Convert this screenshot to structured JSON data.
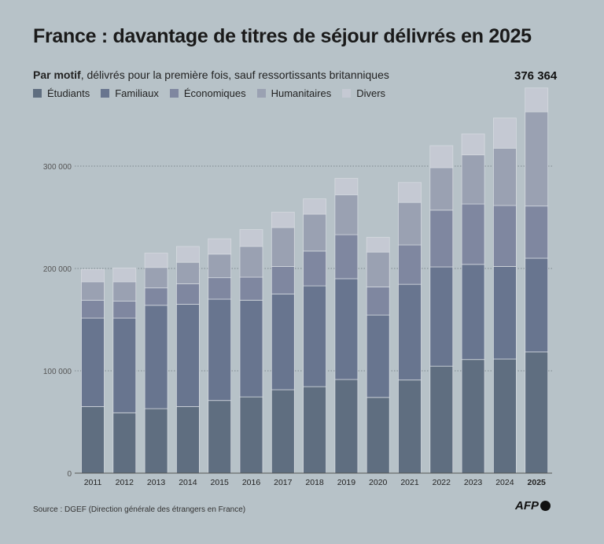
{
  "chart_data": {
    "type": "bar",
    "stacked": true,
    "title": "France : davantage de titres de séjour délivrés en 2025",
    "subtitle_bold": "Par motif",
    "subtitle_rest": ", délivrés pour la première fois, sauf ressortissants britanniques",
    "categories": [
      "2011",
      "2012",
      "2013",
      "2014",
      "2015",
      "2016",
      "2017",
      "2018",
      "2019",
      "2020",
      "2021",
      "2022",
      "2023",
      "2024",
      "2025"
    ],
    "series": [
      {
        "name": "Étudiants",
        "color": "#5f6e80",
        "values": [
          65000,
          59000,
          63000,
          65000,
          71000,
          74500,
          81500,
          84500,
          91500,
          74000,
          91000,
          104500,
          111000,
          111500,
          118500
        ]
      },
      {
        "name": "Familiaux",
        "color": "#68758f",
        "values": [
          86500,
          92500,
          101000,
          100000,
          99000,
          94500,
          93500,
          98500,
          98500,
          80500,
          93500,
          97000,
          93000,
          90500,
          91500
        ]
      },
      {
        "name": "Économiques",
        "color": "#7f87a0",
        "values": [
          17500,
          16500,
          17000,
          20000,
          21000,
          22500,
          27000,
          34000,
          43000,
          27500,
          38500,
          55500,
          59000,
          59500,
          51000
        ]
      },
      {
        "name": "Humanitaires",
        "color": "#9aa1b2",
        "values": [
          18000,
          19000,
          20000,
          21000,
          23000,
          30000,
          38000,
          36000,
          39000,
          34000,
          41500,
          41500,
          48000,
          56000,
          92000
        ]
      },
      {
        "name": "Divers",
        "color": "#c5c9d3",
        "values": [
          12000,
          13500,
          14000,
          15500,
          15000,
          16500,
          15000,
          15000,
          16000,
          14500,
          19500,
          21500,
          20500,
          29500,
          23364
        ]
      }
    ],
    "ylim": [
      0,
      376364
    ],
    "yticks": [
      0,
      100000,
      200000,
      300000
    ],
    "ytick_labels": [
      "0",
      "100 000",
      "200 000",
      "300 000"
    ],
    "grid": true,
    "highlight_category": "2025",
    "annotation": "376 364",
    "legend_position": "top-left",
    "source": "Source : DGEF (Direction générale des étrangers en France)",
    "logo": "AFP"
  }
}
